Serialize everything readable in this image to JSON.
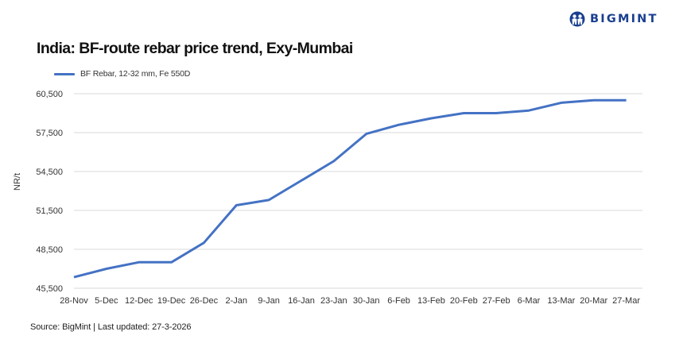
{
  "header": {
    "brand": "BIGMINT",
    "brand_color": "#1a3f8f"
  },
  "title": "India: BF-route rebar price trend, Exy-Mumbai",
  "legend": {
    "label": "BF Rebar, 12-32 mm, Fe 550D",
    "color": "#4472c4"
  },
  "footer": "Source: BigMint | Last updated: 27-3-2026",
  "chart_data": {
    "type": "line",
    "title": "India: BF-route rebar price trend, Exy-Mumbai",
    "xlabel": "",
    "ylabel": "NR/t",
    "ylim": [
      45500,
      60500
    ],
    "yticks": [
      45500,
      48500,
      51500,
      54500,
      57500,
      60500
    ],
    "ytick_labels": [
      "45,500",
      "48,500",
      "51,500",
      "54,500",
      "57,500",
      "60,500"
    ],
    "grid": true,
    "legend_position": "top-left",
    "categories": [
      "28-Nov",
      "5-Dec",
      "12-Dec",
      "19-Dec",
      "26-Dec",
      "2-Jan",
      "9-Jan",
      "16-Jan",
      "23-Jan",
      "30-Jan",
      "6-Feb",
      "13-Feb",
      "20-Feb",
      "27-Feb",
      "6-Mar",
      "13-Mar",
      "20-Mar",
      "27-Mar"
    ],
    "series": [
      {
        "name": "BF Rebar, 12-32 mm, Fe 550D",
        "color": "#4472c4",
        "values": [
          46350,
          47000,
          47500,
          47500,
          49000,
          51900,
          52300,
          53800,
          55300,
          57400,
          58100,
          58600,
          59000,
          59000,
          59200,
          59800,
          60000,
          60000
        ]
      }
    ]
  }
}
